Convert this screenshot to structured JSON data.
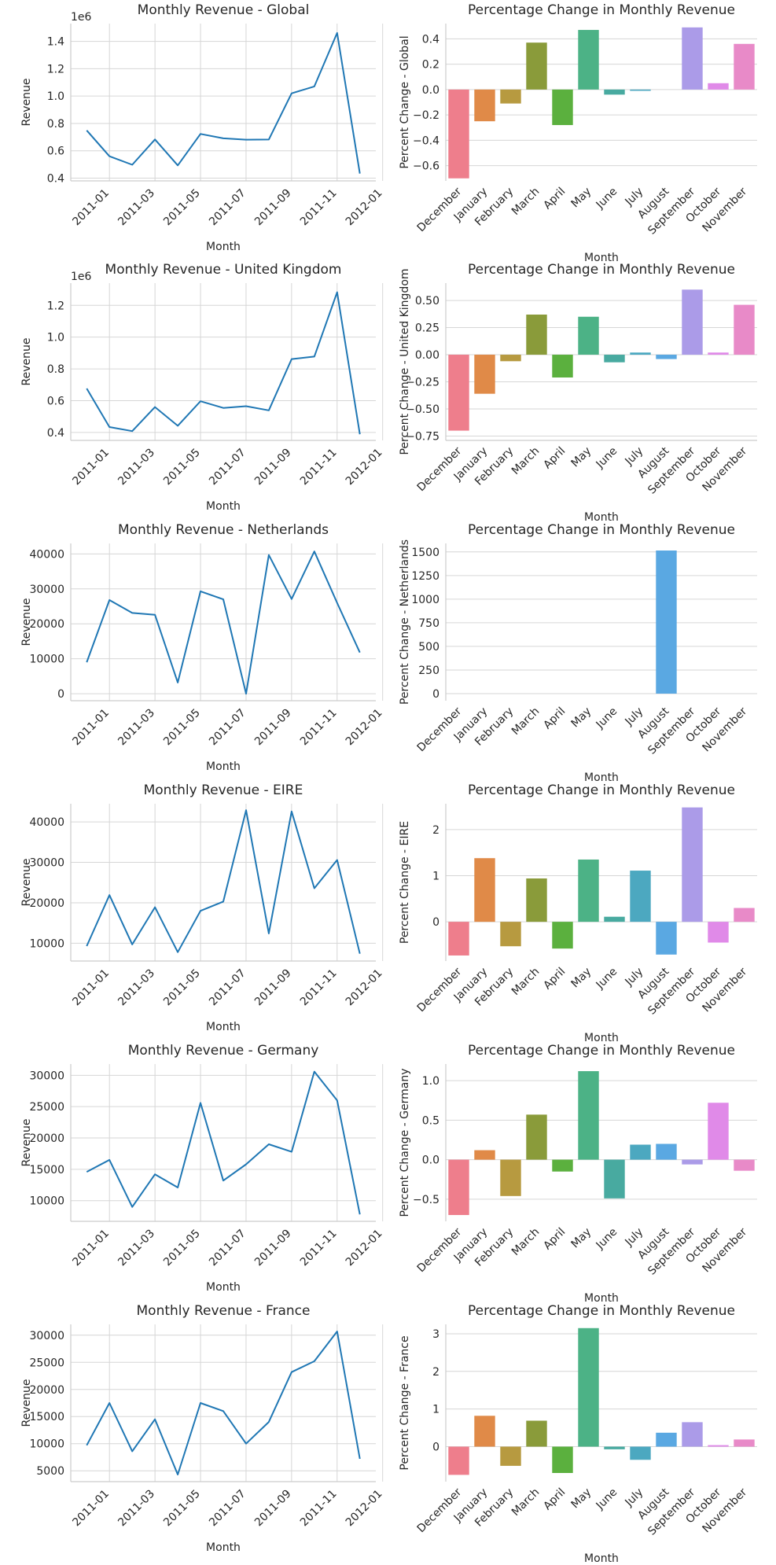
{
  "figure": {
    "line_color": "#1f77b4",
    "month_order": [
      "December",
      "January",
      "February",
      "March",
      "April",
      "May",
      "June",
      "July",
      "August",
      "September",
      "October",
      "November"
    ],
    "palette": [
      "#ee7e8c",
      "#e08a48",
      "#b79a40",
      "#8a9b3a",
      "#5bb03e",
      "#4cb286",
      "#48aaa0",
      "#4ca8c0",
      "#5aa8e2",
      "#ab9be8",
      "#e08ae8",
      "#e88ac8"
    ]
  },
  "chart_data": [
    {
      "type": "line",
      "title": "Monthly Revenue - Global",
      "xlabel": "Month",
      "ylabel": "Revenue",
      "x_ticks": [
        "2011-01",
        "2011-03",
        "2011-05",
        "2011-07",
        "2011-09",
        "2011-11",
        "2012-01"
      ],
      "xlim": [
        -0.7,
        12.7
      ],
      "x": [
        0,
        1,
        2,
        3,
        4,
        5,
        6,
        7,
        8,
        9,
        10,
        11,
        12
      ],
      "dates": [
        "2010-12",
        "2011-01",
        "2011-02",
        "2011-03",
        "2011-04",
        "2011-05",
        "2011-06",
        "2011-07",
        "2011-08",
        "2011-09",
        "2011-10",
        "2011-11",
        "2011-12"
      ],
      "values": [
        748957,
        560000,
        498063,
        683267,
        493207,
        723334,
        691123,
        681300,
        682681,
        1019688,
        1070705,
        1461756,
        433668
      ],
      "ylim": [
        380000,
        1530000
      ],
      "y_ticks": [
        400000,
        600000,
        800000,
        1000000,
        1200000,
        1400000
      ],
      "y_tick_labels": [
        "0.4",
        "0.6",
        "0.8",
        "1.0",
        "1.2",
        "1.4"
      ],
      "y_offset_label": "1e6"
    },
    {
      "type": "bar",
      "title": "Percentage Change in Monthly Revenue",
      "xlabel": "Month",
      "ylabel": "Percent Change - Global",
      "categories": [
        "December",
        "January",
        "February",
        "March",
        "April",
        "May",
        "June",
        "July",
        "August",
        "September",
        "October",
        "November"
      ],
      "values": [
        -0.7,
        -0.25,
        -0.11,
        0.37,
        -0.28,
        0.47,
        -0.04,
        -0.01,
        0.0,
        0.49,
        0.05,
        0.36
      ],
      "ylim": [
        -0.72,
        0.52
      ],
      "y_ticks": [
        -0.6,
        -0.4,
        -0.2,
        0.0,
        0.2,
        0.4
      ],
      "y_tick_labels": [
        "−0.6",
        "−0.4",
        "−0.2",
        "0.0",
        "0.2",
        "0.4"
      ],
      "bottom_axis": false
    },
    {
      "type": "line",
      "title": "Monthly Revenue - United Kingdom",
      "xlabel": "Month",
      "ylabel": "Revenue",
      "x_ticks": [
        "2011-01",
        "2011-03",
        "2011-05",
        "2011-07",
        "2011-09",
        "2011-11",
        "2012-01"
      ],
      "xlim": [
        -0.7,
        12.7
      ],
      "x": [
        0,
        1,
        2,
        3,
        4,
        5,
        6,
        7,
        8,
        9,
        10,
        11,
        12
      ],
      "dates": [
        "2010-12",
        "2011-01",
        "2011-02",
        "2011-03",
        "2011-04",
        "2011-05",
        "2011-06",
        "2011-07",
        "2011-08",
        "2011-09",
        "2011-10",
        "2011-11",
        "2011-12"
      ],
      "values": [
        676742,
        434309,
        408247,
        559707,
        442254,
        596459,
        554479,
        565479,
        539130,
        862018,
        877438,
        1282805,
        388735
      ],
      "ylim": [
        350000,
        1340000
      ],
      "y_ticks": [
        400000,
        600000,
        800000,
        1000000,
        1200000
      ],
      "y_tick_labels": [
        "0.4",
        "0.6",
        "0.8",
        "1.0",
        "1.2"
      ],
      "y_offset_label": "1e6"
    },
    {
      "type": "bar",
      "title": "Percentage Change in Monthly Revenue",
      "xlabel": "Month",
      "ylabel": "Percent Change - United Kingdom",
      "categories": [
        "December",
        "January",
        "February",
        "March",
        "April",
        "May",
        "June",
        "July",
        "August",
        "September",
        "October",
        "November"
      ],
      "values": [
        -0.7,
        -0.36,
        -0.06,
        0.37,
        -0.21,
        0.35,
        -0.07,
        0.02,
        -0.04,
        0.6,
        0.02,
        0.46
      ],
      "ylim": [
        -0.79,
        0.66
      ],
      "y_ticks": [
        -0.75,
        -0.5,
        -0.25,
        0.0,
        0.25,
        0.5
      ],
      "y_tick_labels": [
        "−0.75",
        "−0.50",
        "−0.25",
        "0.00",
        "0.25",
        "0.50"
      ],
      "bottom_axis": true
    },
    {
      "type": "line",
      "title": "Monthly Revenue - Netherlands",
      "xlabel": "Month",
      "ylabel": "Revenue",
      "x_ticks": [
        "2011-01",
        "2011-03",
        "2011-05",
        "2011-07",
        "2011-09",
        "2011-11",
        "2012-01"
      ],
      "xlim": [
        -0.7,
        12.7
      ],
      "x": [
        0,
        1,
        2,
        3,
        4,
        5,
        6,
        7,
        8,
        9,
        10,
        11,
        12
      ],
      "dates": [
        "2010-12",
        "2011-01",
        "2011-02",
        "2011-03",
        "2011-04",
        "2011-05",
        "2011-06",
        "2011-07",
        "2011-08",
        "2011-09",
        "2011-10",
        "2011-11",
        "2011-12"
      ],
      "values": [
        9000,
        26800,
        23100,
        22600,
        3200,
        29300,
        27000,
        0,
        39700,
        27100,
        40700,
        26000,
        11800
      ],
      "ylim": [
        -2000,
        43000
      ],
      "y_ticks": [
        0,
        10000,
        20000,
        30000,
        40000
      ],
      "y_tick_labels": [
        "0",
        "10000",
        "20000",
        "30000",
        "40000"
      ],
      "y_offset_label": ""
    },
    {
      "type": "bar",
      "title": "Percentage Change in Monthly Revenue",
      "xlabel": "Month",
      "ylabel": "Percent Change - Netherlands",
      "categories": [
        "December",
        "January",
        "February",
        "March",
        "April",
        "May",
        "June",
        "July",
        "August",
        "September",
        "October",
        "November"
      ],
      "values": [
        0,
        0,
        0,
        0,
        0,
        0,
        0,
        0,
        1515,
        0,
        0,
        0
      ],
      "ylim": [
        -75,
        1590
      ],
      "y_ticks": [
        0,
        250,
        500,
        750,
        1000,
        1250,
        1500
      ],
      "y_tick_labels": [
        "0",
        "250",
        "500",
        "750",
        "1000",
        "1250",
        "1500"
      ],
      "bottom_axis": false
    },
    {
      "type": "line",
      "title": "Monthly Revenue - EIRE",
      "xlabel": "Month",
      "ylabel": "Revenue",
      "x_ticks": [
        "2011-01",
        "2011-03",
        "2011-05",
        "2011-07",
        "2011-09",
        "2011-11",
        "2012-01"
      ],
      "xlim": [
        -0.7,
        12.7
      ],
      "x": [
        0,
        1,
        2,
        3,
        4,
        5,
        6,
        7,
        8,
        9,
        10,
        11,
        12
      ],
      "dates": [
        "2010-12",
        "2011-01",
        "2011-02",
        "2011-03",
        "2011-04",
        "2011-05",
        "2011-06",
        "2011-07",
        "2011-08",
        "2011-09",
        "2011-10",
        "2011-11",
        "2011-12"
      ],
      "values": [
        9300,
        21900,
        9700,
        18900,
        7800,
        18000,
        20300,
        42900,
        12400,
        42600,
        23600,
        30600,
        7400
      ],
      "ylim": [
        5600,
        44500
      ],
      "y_ticks": [
        10000,
        20000,
        30000,
        40000
      ],
      "y_tick_labels": [
        "10000",
        "20000",
        "30000",
        "40000"
      ],
      "y_offset_label": ""
    },
    {
      "type": "bar",
      "title": "Percentage Change in Monthly Revenue",
      "xlabel": "Month",
      "ylabel": "Percent Change - EIRE",
      "categories": [
        "December",
        "January",
        "February",
        "March",
        "April",
        "May",
        "June",
        "July",
        "August",
        "September",
        "October",
        "November"
      ],
      "values": [
        -0.73,
        1.38,
        -0.53,
        0.94,
        -0.58,
        1.35,
        0.11,
        1.11,
        -0.71,
        2.48,
        -0.45,
        0.3
      ],
      "ylim": [
        -0.85,
        2.56
      ],
      "y_ticks": [
        0,
        1,
        2
      ],
      "y_tick_labels": [
        "0",
        "1",
        "2"
      ],
      "bottom_axis": false
    },
    {
      "type": "line",
      "title": "Monthly Revenue - Germany",
      "xlabel": "Month",
      "ylabel": "Revenue",
      "x_ticks": [
        "2011-01",
        "2011-03",
        "2011-05",
        "2011-07",
        "2011-09",
        "2011-11",
        "2012-01"
      ],
      "xlim": [
        -0.7,
        12.7
      ],
      "x": [
        0,
        1,
        2,
        3,
        4,
        5,
        6,
        7,
        8,
        9,
        10,
        11,
        12
      ],
      "dates": [
        "2010-12",
        "2011-01",
        "2011-02",
        "2011-03",
        "2011-04",
        "2011-05",
        "2011-06",
        "2011-07",
        "2011-08",
        "2011-09",
        "2011-10",
        "2011-11",
        "2011-12"
      ],
      "values": [
        14600,
        16500,
        9000,
        14200,
        12100,
        25600,
        13200,
        15800,
        19000,
        17800,
        30600,
        26000,
        7800
      ],
      "ylim": [
        6700,
        31800
      ],
      "y_ticks": [
        10000,
        15000,
        20000,
        25000,
        30000
      ],
      "y_tick_labels": [
        "10000",
        "15000",
        "20000",
        "25000",
        "30000"
      ],
      "y_offset_label": ""
    },
    {
      "type": "bar",
      "title": "Percentage Change in Monthly Revenue",
      "xlabel": "Month",
      "ylabel": "Percent Change - Germany",
      "categories": [
        "December",
        "January",
        "February",
        "March",
        "April",
        "May",
        "June",
        "July",
        "August",
        "September",
        "October",
        "November"
      ],
      "values": [
        -0.7,
        0.12,
        -0.46,
        0.57,
        -0.15,
        1.12,
        -0.49,
        0.19,
        0.2,
        -0.06,
        0.72,
        -0.14
      ],
      "ylim": [
        -0.78,
        1.21
      ],
      "y_ticks": [
        -0.5,
        0.0,
        0.5,
        1.0
      ],
      "y_tick_labels": [
        "−0.5",
        "0.0",
        "0.5",
        "1.0"
      ],
      "bottom_axis": false
    },
    {
      "type": "line",
      "title": "Monthly Revenue - France",
      "xlabel": "Month",
      "ylabel": "Revenue",
      "x_ticks": [
        "2011-01",
        "2011-03",
        "2011-05",
        "2011-07",
        "2011-09",
        "2011-11",
        "2012-01"
      ],
      "xlim": [
        -0.7,
        12.7
      ],
      "x": [
        0,
        1,
        2,
        3,
        4,
        5,
        6,
        7,
        8,
        9,
        10,
        11,
        12
      ],
      "dates": [
        "2010-12",
        "2011-01",
        "2011-02",
        "2011-03",
        "2011-04",
        "2011-05",
        "2011-06",
        "2011-07",
        "2011-08",
        "2011-09",
        "2011-10",
        "2011-11",
        "2011-12"
      ],
      "values": [
        9700,
        17500,
        8600,
        14500,
        4300,
        17500,
        16000,
        10000,
        14000,
        23200,
        25200,
        30700,
        7200
      ],
      "ylim": [
        3000,
        32000
      ],
      "y_ticks": [
        5000,
        10000,
        15000,
        20000,
        25000,
        30000
      ],
      "y_tick_labels": [
        "5000",
        "10000",
        "15000",
        "20000",
        "25000",
        "30000"
      ],
      "y_offset_label": ""
    },
    {
      "type": "bar",
      "title": "Percentage Change in Monthly Revenue",
      "xlabel": "Month",
      "ylabel": "Percent Change - France",
      "categories": [
        "December",
        "January",
        "February",
        "March",
        "April",
        "May",
        "June",
        "July",
        "August",
        "September",
        "October",
        "November"
      ],
      "values": [
        -0.75,
        0.82,
        -0.51,
        0.69,
        -0.7,
        3.15,
        -0.07,
        -0.35,
        0.37,
        0.65,
        0.04,
        0.19
      ],
      "ylim": [
        -0.93,
        3.25
      ],
      "y_ticks": [
        0,
        1,
        2,
        3
      ],
      "y_tick_labels": [
        "0",
        "1",
        "2",
        "3"
      ],
      "bottom_axis": false
    }
  ]
}
